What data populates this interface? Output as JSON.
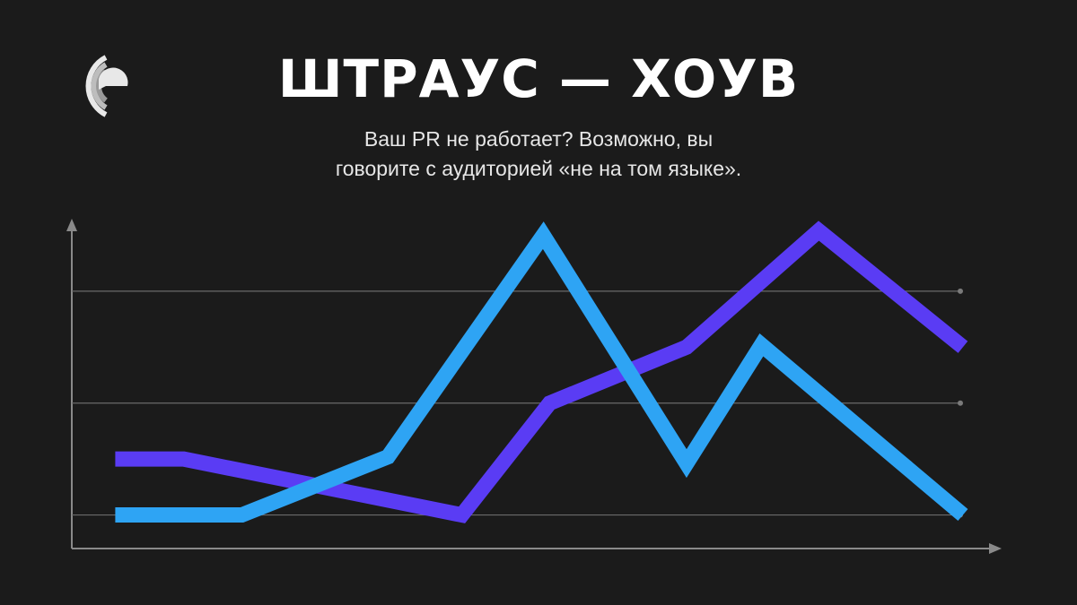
{
  "chart_data": {
    "type": "line",
    "title": "ШТРАУС — ХОУВ",
    "subtitle": [
      "Ваш PR не работает? Возможно, вы",
      "говорите с аудиторией «не на том языке»."
    ],
    "xlim": [
      0,
      10
    ],
    "ylim": [
      0.7,
      3.7
    ],
    "yticks": [
      1,
      2,
      3
    ],
    "grid": true,
    "series": [
      {
        "color": "#5a3cf4",
        "x": [
          0.47,
          1.21,
          4.22,
          5.17,
          6.65,
          8.08,
          9.64
        ],
        "values": [
          1.5,
          1.5,
          1.0,
          2.0,
          2.5,
          3.54,
          2.5
        ]
      },
      {
        "color": "#2ea4f4",
        "x": [
          0.47,
          1.84,
          3.42,
          5.1,
          6.65,
          7.46,
          9.64
        ],
        "values": [
          1.0,
          1.0,
          1.52,
          3.5,
          1.46,
          2.52,
          1.0
        ]
      }
    ]
  }
}
